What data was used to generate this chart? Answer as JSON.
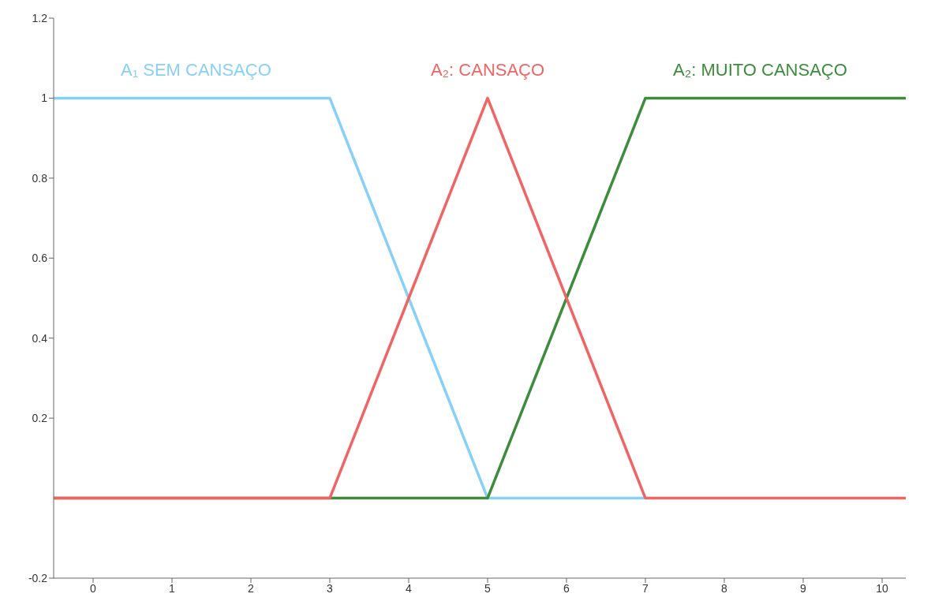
{
  "chart_data": {
    "type": "line",
    "series": [
      {
        "name": "A₁ SEM CANSAÇO",
        "color": "#87d0f8",
        "x": [
          -0.5,
          3,
          5,
          7
        ],
        "values": [
          1,
          1,
          0,
          0
        ]
      },
      {
        "name": "A₂: MUITO CANSAÇO",
        "color": "#3c8c3c",
        "x": [
          -0.5,
          5,
          7,
          10.3
        ],
        "values": [
          0,
          0,
          1,
          1
        ]
      },
      {
        "name": "A₂: CANSAÇO",
        "color": "#f06464",
        "x": [
          -0.5,
          3,
          5,
          7,
          10.3
        ],
        "values": [
          0,
          0,
          1,
          0,
          0
        ]
      }
    ],
    "xlim": [
      -0.5,
      10.3
    ],
    "xticks": [
      0,
      1,
      2,
      3,
      4,
      5,
      6,
      7,
      8,
      9,
      10
    ],
    "ylim": [
      -0.2,
      1.2
    ],
    "yticks": [
      -0.2,
      0.2,
      0.4,
      0.6,
      0.8,
      1,
      1.2
    ],
    "grid": false,
    "legend": false,
    "marker": "none",
    "line_style": "solid"
  }
}
